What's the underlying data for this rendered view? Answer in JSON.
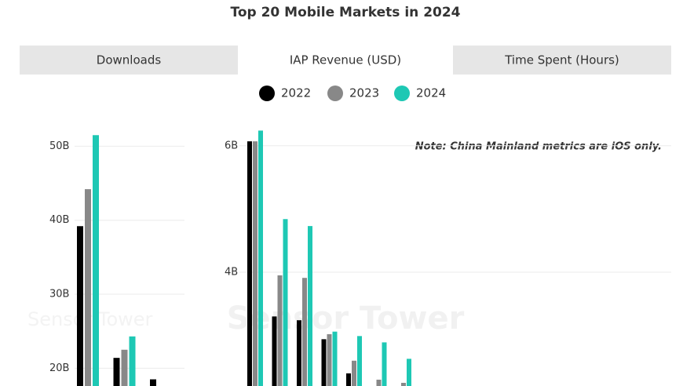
{
  "title": "Top 20 Mobile Markets in 2024",
  "tabs": [
    "Downloads",
    "IAP Revenue (USD)",
    "Time Spent (Hours)"
  ],
  "selected_tab": 1,
  "note": "Note: China Mainland metrics are iOS only.",
  "watermark": "Sensor Tower",
  "chart_data": [
    {
      "type": "bar",
      "categories": [
        null,
        null,
        null
      ],
      "series": [
        {
          "name": "2022",
          "color": "#000000",
          "values": [
            39.2,
            21.4,
            18.5
          ]
        },
        {
          "name": "2023",
          "color": "#888888",
          "values": [
            44.2,
            22.5,
            null
          ]
        },
        {
          "name": "2024",
          "color": "#1ec8b4",
          "values": [
            51.5,
            24.3,
            null
          ]
        }
      ],
      "ylim": [
        17.6,
        52.8
      ],
      "yticks": [
        {
          "value": 20,
          "label": "20B"
        },
        {
          "value": 30,
          "label": "30B"
        },
        {
          "value": 40,
          "label": "40B"
        },
        {
          "value": 50,
          "label": "50B"
        }
      ],
      "grid": true
    },
    {
      "type": "bar",
      "categories": [
        null,
        null,
        null,
        null,
        null,
        null,
        null
      ],
      "series": [
        {
          "name": "2022",
          "color": "#000000",
          "values": [
            6.07,
            3.3,
            3.24,
            2.94,
            2.4,
            null,
            null
          ]
        },
        {
          "name": "2023",
          "color": "#888888",
          "values": [
            6.07,
            3.95,
            3.91,
            3.02,
            2.6,
            2.3,
            2.25
          ]
        },
        {
          "name": "2024",
          "color": "#1ec8b4",
          "values": [
            6.24,
            4.84,
            4.73,
            3.06,
            2.99,
            2.89,
            2.63
          ]
        }
      ],
      "ylim": [
        2.2,
        6.32
      ],
      "yticks": [
        {
          "value": 4,
          "label": "4B"
        },
        {
          "value": 6,
          "label": "6B"
        }
      ],
      "grid": true
    }
  ]
}
